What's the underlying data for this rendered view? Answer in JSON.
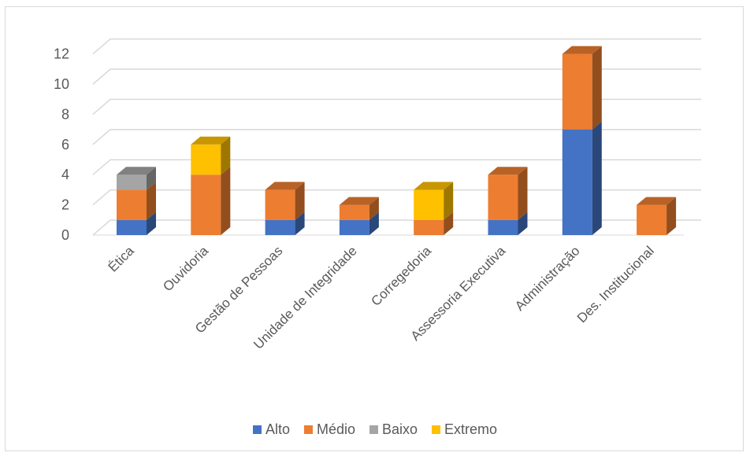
{
  "chart_data": {
    "type": "bar",
    "stacked": true,
    "style": "3d",
    "categories": [
      "Ética",
      "Ouvidoria",
      "Gestão de Pessoas",
      "Unidade de Integridade",
      "Corregedoria",
      "Assessoria Executiva",
      "Administração",
      "Des. Institucional"
    ],
    "series": [
      {
        "name": "Alto",
        "color": "#4472C4",
        "values": [
          1,
          0,
          1,
          1,
          0,
          1,
          7,
          0
        ]
      },
      {
        "name": "Médio",
        "color": "#ED7D31",
        "values": [
          2,
          4,
          2,
          1,
          1,
          3,
          5,
          2
        ]
      },
      {
        "name": "Baixo",
        "color": "#A5A5A5",
        "values": [
          1,
          0,
          0,
          0,
          0,
          0,
          0,
          0
        ]
      },
      {
        "name": "Extremo",
        "color": "#FFC000",
        "values": [
          0,
          2,
          0,
          0,
          2,
          0,
          0,
          0
        ]
      }
    ],
    "y_ticks": [
      "0",
      "2",
      "4",
      "6",
      "8",
      "10",
      "12"
    ],
    "ylim": [
      0,
      13
    ],
    "grid": true,
    "legend_position": "bottom"
  }
}
